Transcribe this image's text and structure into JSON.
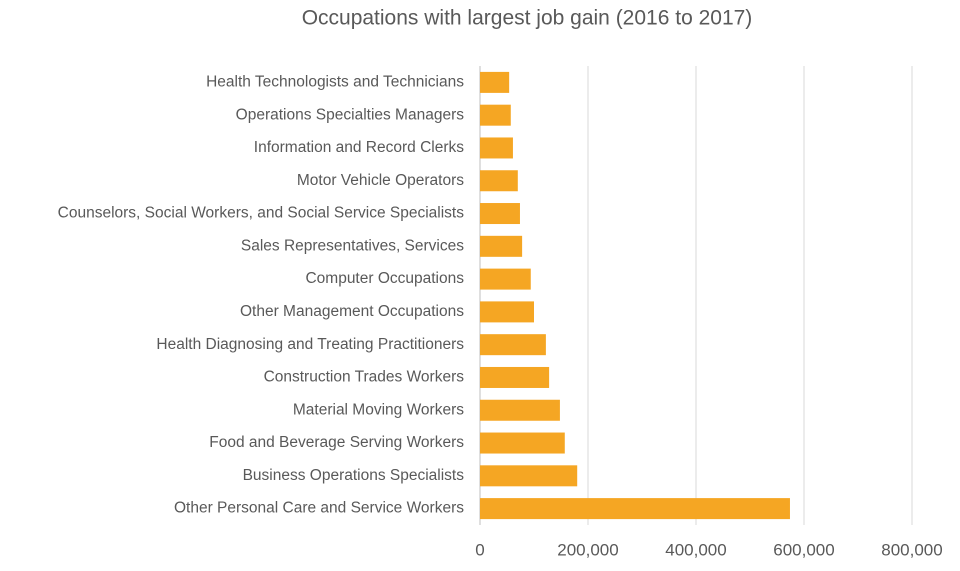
{
  "chart_data": {
    "type": "bar",
    "orientation": "horizontal",
    "title": "Occupations with largest job gain (2016 to 2017)",
    "categories": [
      "Health Technologists and Technicians",
      "Operations Specialties Managers",
      "Information and Record Clerks",
      "Motor Vehicle Operators",
      "Counselors, Social Workers, and Social Service Specialists",
      "Sales Representatives, Services",
      "Computer Occupations",
      "Other Management Occupations",
      "Health Diagnosing and Treating Practitioners",
      "Construction Trades Workers",
      "Material Moving Workers",
      "Food and Beverage Serving Workers",
      "Business Operations Specialists",
      "Other Personal Care and Service Workers"
    ],
    "values": [
      54000,
      57000,
      61000,
      70000,
      74000,
      78000,
      94000,
      100000,
      122000,
      128000,
      148000,
      157000,
      180000,
      574000
    ],
    "color": "#f5a623",
    "xlim": [
      0,
      800000
    ],
    "xticks": [
      0,
      {
        "value": 200000,
        "label": "200,000"
      },
      {
        "value": 400000,
        "label": "400,000"
      },
      {
        "value": 600000,
        "label": "600,000"
      },
      {
        "value": 800000,
        "label": "800,000"
      }
    ],
    "grid": true
  }
}
